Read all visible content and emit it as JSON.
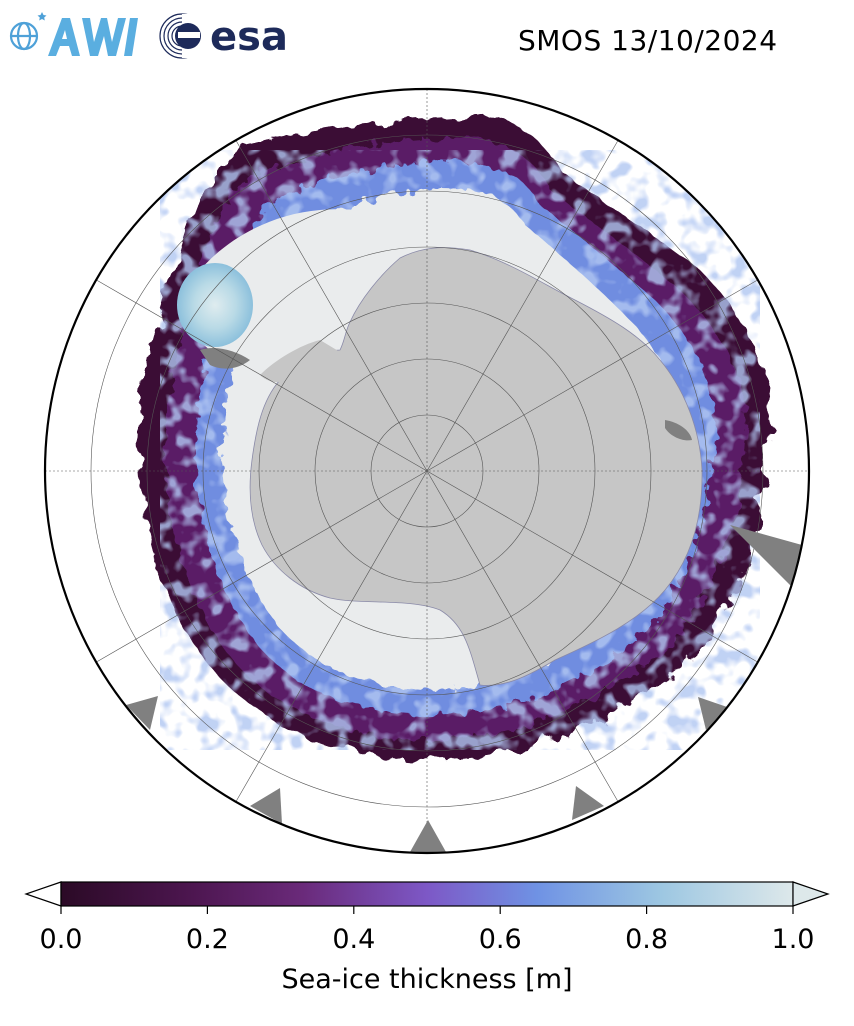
{
  "header": {
    "title": "SMOS 13/10/2024",
    "logos": [
      {
        "name": "awi-logo",
        "text": "AWI"
      },
      {
        "name": "esa-logo",
        "text": "esa"
      }
    ]
  },
  "colors": {
    "land": "#c6c6c6",
    "ice_shelf_dark": "#808080",
    "ocean": "#ffffff",
    "frame": "#000000",
    "colormap": [
      "#2b0a26",
      "#4d1650",
      "#6a2a7a",
      "#7d58c6",
      "#6f92e4",
      "#9dc7e2",
      "#dde8ea"
    ]
  },
  "chart_data": {
    "type": "heatmap",
    "projection": "south-polar-stereographic",
    "title": "SMOS 13/10/2024",
    "variable": "Sea-ice thickness",
    "units": "m",
    "colorbar": {
      "label": "Sea-ice thickness [m]",
      "range": [
        0.0,
        1.0
      ],
      "ticks": [
        "0.0",
        "0.2",
        "0.4",
        "0.6",
        "0.8",
        "1.0"
      ],
      "extend": "both",
      "placement": "bottom"
    },
    "grid": true
  }
}
